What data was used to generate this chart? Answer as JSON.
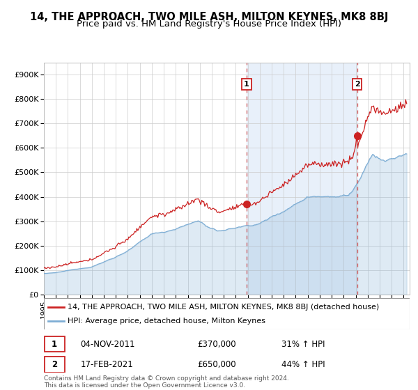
{
  "title": "14, THE APPROACH, TWO MILE ASH, MILTON KEYNES, MK8 8BJ",
  "subtitle": "Price paid vs. HM Land Registry's House Price Index (HPI)",
  "legend_line1": "14, THE APPROACH, TWO MILE ASH, MILTON KEYNES, MK8 8BJ (detached house)",
  "legend_line2": "HPI: Average price, detached house, Milton Keynes",
  "annotation1_date": "04-NOV-2011",
  "annotation1_price": "£370,000",
  "annotation1_hpi": "31% ↑ HPI",
  "annotation1_year": 2011.9,
  "annotation1_value": 370000,
  "annotation2_date": "17-FEB-2021",
  "annotation2_price": "£650,000",
  "annotation2_hpi": "44% ↑ HPI",
  "annotation2_year": 2021.12,
  "annotation2_value": 650000,
  "footer": "Contains HM Land Registry data © Crown copyright and database right 2024.\nThis data is licensed under the Open Government Licence v3.0.",
  "ylim": [
    0,
    950000
  ],
  "yticks": [
    0,
    100000,
    200000,
    300000,
    400000,
    500000,
    600000,
    700000,
    800000,
    900000
  ],
  "ytick_labels": [
    "£0",
    "£100K",
    "£200K",
    "£300K",
    "£400K",
    "£500K",
    "£600K",
    "£700K",
    "£800K",
    "£900K"
  ],
  "property_color": "#cc2222",
  "hpi_color": "#7dadd4",
  "hpi_fill_alpha": 0.25,
  "vline_color": "#cc4444",
  "shaded_color": "#e8f0fa",
  "grid_color": "#cccccc",
  "title_fontsize": 10.5,
  "subtitle_fontsize": 9.5,
  "axis_fontsize": 8,
  "legend_fontsize": 8,
  "footer_fontsize": 6.5
}
